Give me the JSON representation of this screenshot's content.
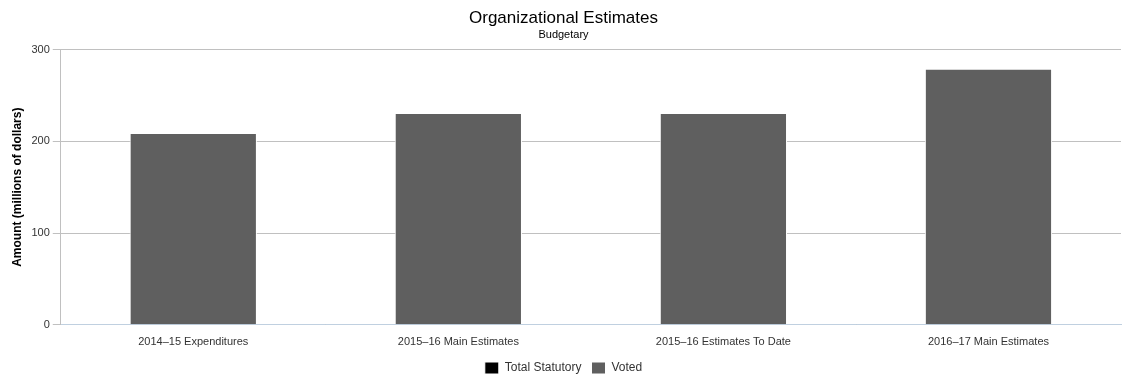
{
  "chart_data": {
    "type": "bar",
    "title": "Organizational Estimates",
    "subtitle": "Budgetary",
    "y_label": "Amount (millions of dollars)",
    "categories": [
      "2014–15 Expenditures",
      "2015–16 Main Estimates",
      "2015–16 Estimates To Date",
      "2016–17 Main Estimates"
    ],
    "series": [
      {
        "name": "Total Statutory",
        "color": "#000000",
        "values": [
          0,
          0,
          0,
          0
        ]
      },
      {
        "name": "Voted",
        "color": "#5f5f5f",
        "values": [
          209,
          231,
          231,
          279
        ]
      }
    ],
    "ylim": [
      0,
      300
    ],
    "yticks": [
      0,
      100,
      200,
      300
    ],
    "grid": true,
    "stacked": true,
    "legend": "bottom"
  }
}
